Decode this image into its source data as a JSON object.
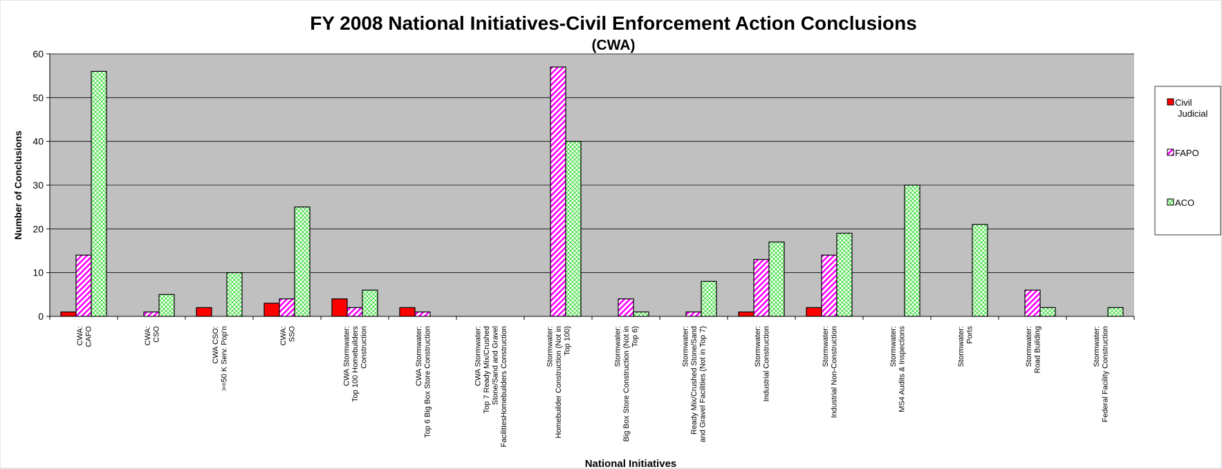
{
  "chart_data": {
    "type": "bar",
    "title": "FY 2008 National Initiatives-Civil Enforcement Action Conclusions",
    "subtitle": "(CWA)",
    "xlabel": "National Initiatives",
    "ylabel": "Number of Conclusions",
    "ylim": [
      0,
      60
    ],
    "yticks": [
      0,
      10,
      20,
      30,
      40,
      50,
      60
    ],
    "grid": true,
    "legend_position": "right",
    "categories": [
      [
        "CWA:",
        "CAFO"
      ],
      [
        "CWA:",
        "CSO"
      ],
      [
        "CWA CSO:",
        ">=50 K Serv. Pop'n"
      ],
      [
        "CWA:",
        "SSO"
      ],
      [
        "CWA Stormwater:",
        "Top 100 Homebuilders",
        "Construction"
      ],
      [
        "CWA Stormwater:",
        "Top 6 Big Box Store Construction"
      ],
      [
        "CWA Stormwater:",
        "Top 7 Ready Mix/Crushed",
        "Stone/Sand and Gravel",
        "FacilitiesHomebuilders Construction"
      ],
      [
        "Stormwater:",
        "Homebuilder Construction (Not in",
        "Top 100)"
      ],
      [
        "Stormwater:",
        "Big Box Store Construction (Not in",
        "Top 6)"
      ],
      [
        "Stormwater:",
        "Ready Mix/Crushed Stone/Sand",
        "and Gravel Facilities (Not in Top 7)"
      ],
      [
        "Stormwater:",
        "Industrial Construction"
      ],
      [
        "Stormwater:",
        "Industrial Non-Construction"
      ],
      [
        "Stormwater:",
        "MS4 Audits & Inspections"
      ],
      [
        "Stormwater:",
        "Ports"
      ],
      [
        "Stormwater:",
        "Road Building"
      ],
      [
        "Stormwater:",
        "Federal Facility Construction"
      ]
    ],
    "series": [
      {
        "name": "Civil Judicial",
        "legend_lines": [
          "Civil",
          "Judicial"
        ],
        "color": "#ff0000",
        "values": [
          1,
          0,
          2,
          3,
          4,
          2,
          0,
          0,
          0,
          0,
          1,
          2,
          0,
          0,
          0,
          0
        ]
      },
      {
        "name": "FAPO",
        "legend_lines": [
          "FAPO"
        ],
        "color": "#ff00ff",
        "values": [
          14,
          1,
          0,
          4,
          2,
          1,
          0,
          57,
          4,
          1,
          13,
          14,
          0,
          0,
          6,
          0
        ]
      },
      {
        "name": "ACO",
        "legend_lines": [
          "ACO"
        ],
        "color": "#66ff66",
        "values": [
          56,
          5,
          10,
          25,
          6,
          0,
          0,
          40,
          1,
          8,
          17,
          19,
          30,
          21,
          2,
          2
        ]
      }
    ],
    "colors": {
      "plot_background": "#c0c0c0",
      "grid": "#000000"
    }
  }
}
